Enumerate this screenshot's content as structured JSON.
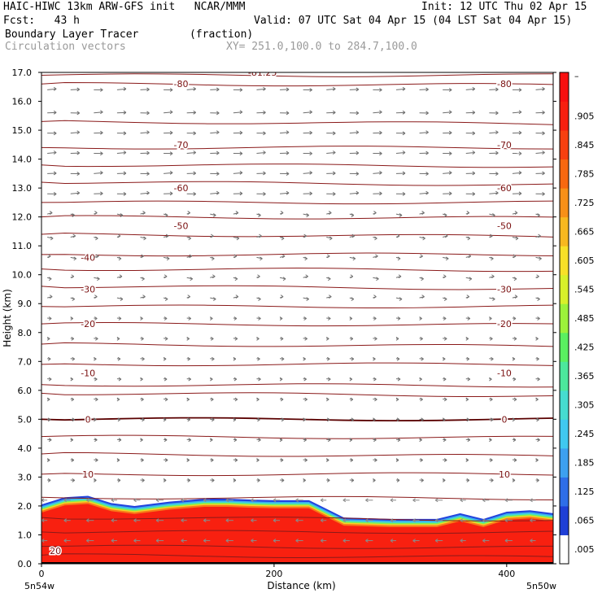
{
  "header": {
    "model_line": "HAIC-HIWC 13km ARW-GFS init   NCAR/MMM",
    "init_line": "Init: 12 UTC Thu 02 Apr 15",
    "fcst_line": "Fcst:   43 h",
    "valid_line": "Valid: 07 UTC Sat 04 Apr 15 (04 LST Sat 04 Apr 15)",
    "field_line": "Boundary Layer Tracer        (fraction)",
    "vector_line": "Circulation vectors",
    "xy_line": "XY= 251.0,100.0 to 284.7,100.0"
  },
  "chart_data": {
    "type": "heatmap",
    "title": "Boundary Layer Tracer",
    "units": "(fraction)",
    "xlabel": "Distance (km)",
    "ylabel": "Height (km)",
    "xlim": [
      0,
      440
    ],
    "ylim": [
      0,
      17
    ],
    "x_ticks": [
      0,
      200,
      400
    ],
    "y_ticks": [
      "0.0",
      "1.0",
      "2.0",
      "3.0",
      "4.0",
      "5.0",
      "6.0",
      "7.0",
      "8.0",
      "9.0",
      "10.0",
      "11.0",
      "12.0",
      "13.0",
      "14.0",
      "15.0",
      "16.0",
      "17.0"
    ],
    "x_endpoint_labels": [
      "5n54w",
      "5n50w"
    ],
    "colorbar_labels": [
      ".005",
      ".065",
      ".125",
      ".185",
      ".245",
      ".305",
      ".365",
      ".425",
      ".485",
      ".545",
      ".605",
      ".665",
      ".725",
      ".785",
      ".845",
      ".905",
      "–"
    ],
    "colorbar_colors": [
      "#ffffff",
      "#1f3fd6",
      "#2f6ee8",
      "#3da0f0",
      "#40c8f0",
      "#46dcd0",
      "#4ce89c",
      "#5af060",
      "#9cf23a",
      "#d8f02a",
      "#f8e028",
      "#f8b820",
      "#f89018",
      "#f86810",
      "#f84010",
      "#f82010",
      "#f81010"
    ],
    "tracer_top_profile": {
      "x_km": [
        0,
        20,
        40,
        60,
        80,
        110,
        140,
        160,
        180,
        200,
        230,
        250,
        260,
        300,
        340,
        360,
        380,
        400,
        420,
        440
      ],
      "height_km": [
        2.05,
        2.3,
        2.35,
        2.1,
        2.0,
        2.15,
        2.25,
        2.25,
        2.22,
        2.2,
        2.2,
        1.8,
        1.6,
        1.55,
        1.55,
        1.75,
        1.55,
        1.8,
        1.85,
        1.75
      ]
    },
    "contour_labels": [
      {
        "text": "-81.25",
        "x": 190,
        "y": 17.0
      },
      {
        "text": "-80",
        "x": 120,
        "y": 16.6
      },
      {
        "text": "-80",
        "x": 398,
        "y": 16.6
      },
      {
        "text": "-70",
        "x": 120,
        "y": 14.5
      },
      {
        "text": "-70",
        "x": 398,
        "y": 14.5
      },
      {
        "text": "-60",
        "x": 120,
        "y": 13.0
      },
      {
        "text": "-60",
        "x": 398,
        "y": 13.0
      },
      {
        "text": "-50",
        "x": 120,
        "y": 11.7
      },
      {
        "text": "-50",
        "x": 398,
        "y": 11.7
      },
      {
        "text": "-40",
        "x": 40,
        "y": 10.6
      },
      {
        "text": "-30",
        "x": 40,
        "y": 9.5
      },
      {
        "text": "-30",
        "x": 398,
        "y": 9.5
      },
      {
        "text": "-20",
        "x": 40,
        "y": 8.3
      },
      {
        "text": "-20",
        "x": 398,
        "y": 8.3
      },
      {
        "text": "-10",
        "x": 40,
        "y": 6.6
      },
      {
        "text": "-10",
        "x": 398,
        "y": 6.6
      },
      {
        "text": "0",
        "x": 40,
        "y": 5.0
      },
      {
        "text": "0",
        "x": 398,
        "y": 5.0
      },
      {
        "text": "10",
        "x": 40,
        "y": 3.1
      },
      {
        "text": "10",
        "x": 398,
        "y": 3.1
      },
      {
        "text": "20",
        "x": 12,
        "y": 0.45
      }
    ],
    "isotherm_heights_km": [
      16.9,
      16.6,
      15.3,
      14.4,
      13.8,
      13.2,
      12.5,
      12.0,
      11.4,
      10.7,
      10.2,
      9.6,
      8.9,
      8.3,
      7.6,
      6.9,
      6.2,
      5.9,
      5.0,
      4.4,
      3.8,
      3.1,
      2.3,
      1.6,
      1.1,
      0.6,
      0.3
    ],
    "vector_rows_km": [
      16.4,
      15.6,
      14.9,
      14.2,
      13.5,
      12.8,
      12.1,
      11.3,
      10.6,
      9.9,
      9.2,
      8.5,
      7.8,
      7.1,
      6.4,
      5.7,
      5.0,
      4.3,
      3.6,
      2.9,
      2.2,
      1.5,
      0.8
    ],
    "vector_cols_km": [
      5,
      25,
      45,
      65,
      85,
      105,
      125,
      145,
      165,
      185,
      205,
      225,
      245,
      265,
      285,
      305,
      325,
      345,
      365,
      385,
      405,
      425
    ]
  }
}
